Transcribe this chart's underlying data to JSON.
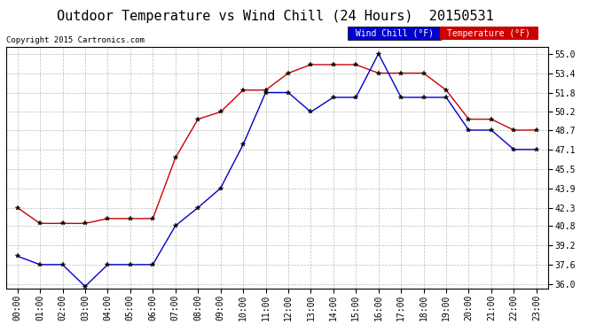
{
  "title": "Outdoor Temperature vs Wind Chill (24 Hours)  20150531",
  "copyright": "Copyright 2015 Cartronics.com",
  "legend_wind_chill": "Wind Chill (°F)",
  "legend_temperature": "Temperature (°F)",
  "hours": [
    "00:00",
    "01:00",
    "02:00",
    "03:00",
    "04:00",
    "05:00",
    "06:00",
    "07:00",
    "08:00",
    "09:00",
    "10:00",
    "11:00",
    "12:00",
    "13:00",
    "14:00",
    "15:00",
    "16:00",
    "17:00",
    "18:00",
    "19:00",
    "20:00",
    "21:00",
    "22:00",
    "23:00"
  ],
  "temperature": [
    42.3,
    41.0,
    41.0,
    41.0,
    41.4,
    41.4,
    41.4,
    46.4,
    49.6,
    50.2,
    52.0,
    52.0,
    53.4,
    54.1,
    54.1,
    54.1,
    53.4,
    53.4,
    53.4,
    52.0,
    49.6,
    49.6,
    48.7,
    48.7
  ],
  "wind_chill": [
    38.3,
    37.6,
    37.6,
    35.8,
    37.6,
    37.6,
    37.6,
    40.8,
    42.3,
    43.9,
    47.5,
    51.8,
    51.8,
    50.2,
    51.4,
    51.4,
    55.0,
    51.4,
    51.4,
    51.4,
    48.7,
    48.7,
    47.1,
    47.1
  ],
  "ylim": [
    35.6,
    55.6
  ],
  "yticks": [
    36.0,
    37.6,
    39.2,
    40.8,
    42.3,
    43.9,
    45.5,
    47.1,
    48.7,
    50.2,
    51.8,
    53.4,
    55.0
  ],
  "background_color": "#ffffff",
  "grid_color": "#bbbbbb",
  "temp_color": "#cc0000",
  "wind_chill_color": "#0000cc",
  "title_fontsize": 11,
  "tick_label_fontsize": 7,
  "legend_wc_bg": "#0000cc",
  "legend_temp_bg": "#cc0000"
}
